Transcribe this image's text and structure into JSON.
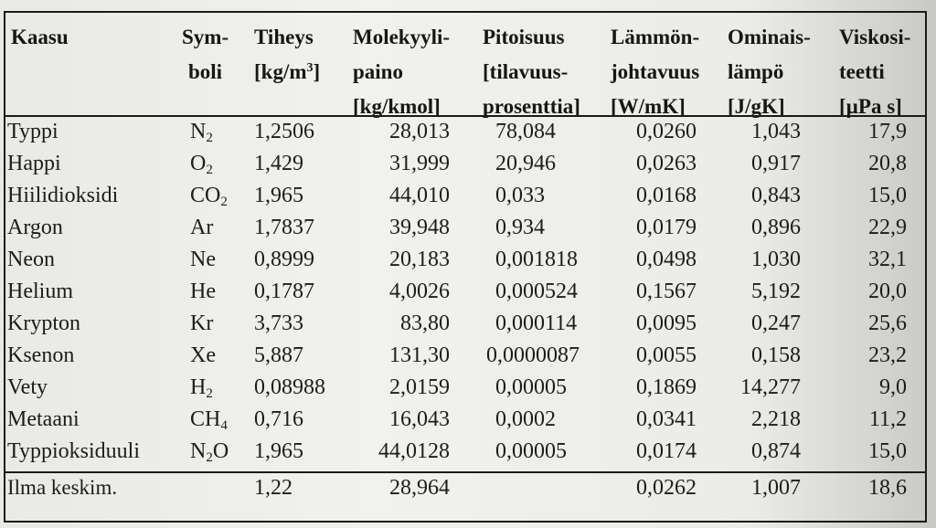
{
  "table": {
    "headers": [
      {
        "key": "kaasu",
        "lines": [
          "Kaasu"
        ]
      },
      {
        "key": "symboli",
        "lines": [
          "Sym-",
          "boli"
        ]
      },
      {
        "key": "tiheys",
        "lines": [
          "Tiheys",
          "[kg/m",
          "3",
          "]"
        ]
      },
      {
        "key": "molekyylipaino",
        "lines": [
          "Molekyyli-",
          "paino",
          "[kg/kmol]"
        ]
      },
      {
        "key": "pitoisuus",
        "lines": [
          "Pitoisuus",
          "[tilavuus-",
          "prosenttia]"
        ]
      },
      {
        "key": "lammonjohtavuus",
        "lines": [
          "Lämmön-",
          "johtavuus",
          "[W/mK]"
        ]
      },
      {
        "key": "ominaislampo",
        "lines": [
          "Ominais-",
          "lämpö",
          "[J/gK]"
        ]
      },
      {
        "key": "viskositeetti",
        "lines": [
          "Viskosi-",
          "teetti",
          "[µPa s]"
        ]
      }
    ],
    "rows": [
      {
        "name": "Typpi",
        "sym": "N",
        "sub": "2",
        "sym_tail": "",
        "tiheys": "1,2506",
        "mol": "28,013",
        "pit": "78,084",
        "lam": "0,0260",
        "omi": "1,043",
        "vis": "17,9"
      },
      {
        "name": "Happi",
        "sym": "O",
        "sub": "2",
        "sym_tail": "",
        "tiheys": "1,429",
        "mol": "31,999",
        "pit": "20,946",
        "lam": "0,0263",
        "omi": "0,917",
        "vis": "20,8"
      },
      {
        "name": "Hiilidioksidi",
        "sym": "CO",
        "sub": "2",
        "sym_tail": "",
        "tiheys": "1,965",
        "mol": "44,010",
        "pit": "0,033",
        "lam": "0,0168",
        "omi": "0,843",
        "vis": "15,0"
      },
      {
        "name": "Argon",
        "sym": "Ar",
        "sub": "",
        "sym_tail": "",
        "tiheys": "1,7837",
        "mol": "39,948",
        "pit": "0,934",
        "lam": "0,0179",
        "omi": "0,896",
        "vis": "22,9"
      },
      {
        "name": "Neon",
        "sym": "Ne",
        "sub": "",
        "sym_tail": "",
        "tiheys": "0,8999",
        "mol": "20,183",
        "pit": "0,001818",
        "lam": "0,0498",
        "omi": "1,030",
        "vis": "32,1"
      },
      {
        "name": "Helium",
        "sym": "He",
        "sub": "",
        "sym_tail": "",
        "tiheys": "0,1787",
        "mol": "4,0026",
        "pit": "0,000524",
        "lam": "0,1567",
        "omi": "5,192",
        "vis": "20,0"
      },
      {
        "name": "Krypton",
        "sym": "Kr",
        "sub": "",
        "sym_tail": "",
        "tiheys": "3,733",
        "mol": "83,80",
        "pit": "0,000114",
        "lam": "0,0095",
        "omi": "0,247",
        "vis": "25,6"
      },
      {
        "name": "Ksenon",
        "sym": "Xe",
        "sub": "",
        "sym_tail": "",
        "tiheys": "5,887",
        "mol": "131,30",
        "pit": "0,0000087",
        "lam": "0,0055",
        "omi": "0,158",
        "vis": "23,2"
      },
      {
        "name": "Vety",
        "sym": "H",
        "sub": "2",
        "sym_tail": "",
        "tiheys": "0,08988",
        "mol": "2,0159",
        "pit": "0,00005",
        "lam": "0,1869",
        "omi": "14,277",
        "vis": "9,0"
      },
      {
        "name": "Metaani",
        "sym": "CH",
        "sub": "4",
        "sym_tail": "",
        "tiheys": "0,716",
        "mol": "16,043",
        "pit": "0,0002",
        "lam": "0,0341",
        "omi": "2,218",
        "vis": "11,2"
      },
      {
        "name": "Typpioksiduuli",
        "sym": "N",
        "sub": "2",
        "sym_tail": "O",
        "tiheys": "1,965",
        "mol": "44,0128",
        "pit": "0,00005",
        "lam": "0,0174",
        "omi": "0,874",
        "vis": "15,0"
      }
    ],
    "footer": {
      "name": "Ilma keskim.",
      "tiheys": "1,22",
      "mol": "28,964",
      "lam": "0,0262",
      "omi": "1,007",
      "vis": "18,6"
    }
  }
}
